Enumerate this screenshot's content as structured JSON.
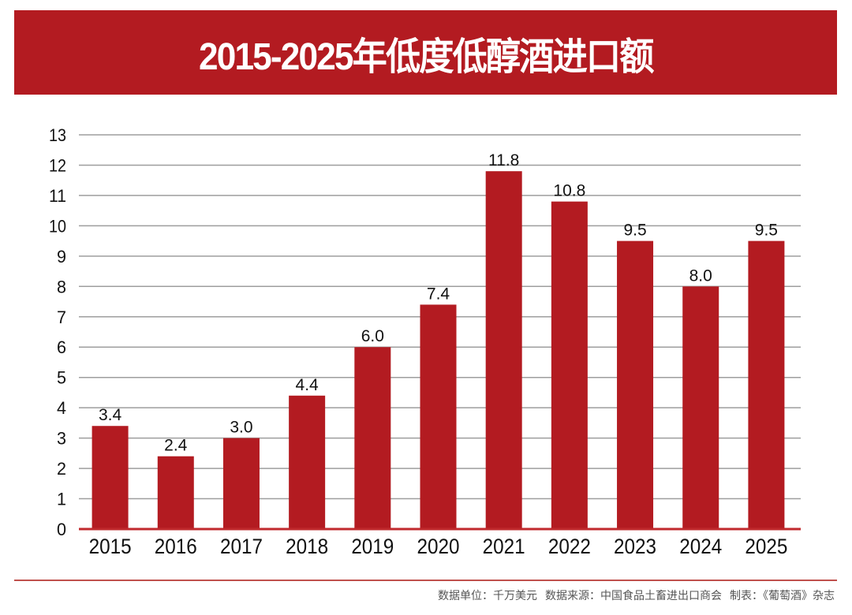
{
  "header": {
    "title": "2015-2025年低度低醇酒进口额"
  },
  "footer": {
    "unit": "数据单位：千万美元",
    "source": "数据来源：中国食品土畜进出口商会",
    "producer": "制表：《葡萄酒》杂志"
  },
  "colors": {
    "bar": "#b31b21",
    "banner": "#b31b21",
    "grid": "#9e9e9e",
    "axis": "#c0292d"
  },
  "chart_data": {
    "type": "bar",
    "title": "2015-2025年低度低醇酒进口额",
    "xlabel": "",
    "ylabel": "",
    "categories": [
      "2015",
      "2016",
      "2017",
      "2018",
      "2019",
      "2020",
      "2021",
      "2022",
      "2023",
      "2024",
      "2025"
    ],
    "values": [
      3.4,
      2.4,
      3.0,
      4.4,
      6.0,
      7.4,
      11.8,
      10.8,
      9.5,
      8.0,
      9.5
    ],
    "value_labels": [
      "3.4",
      "2.4",
      "3.0",
      "4.4",
      "6.0",
      "7.4",
      "11.8",
      "10.8",
      "9.5",
      "8.0",
      "9.5"
    ],
    "yticks": [
      "0",
      "1",
      "2",
      "3",
      "4",
      "5",
      "6",
      "7",
      "8",
      "9",
      "10",
      "11",
      "12",
      "13"
    ],
    "ylim": [
      0,
      13
    ],
    "grid": true,
    "legend": "none"
  }
}
